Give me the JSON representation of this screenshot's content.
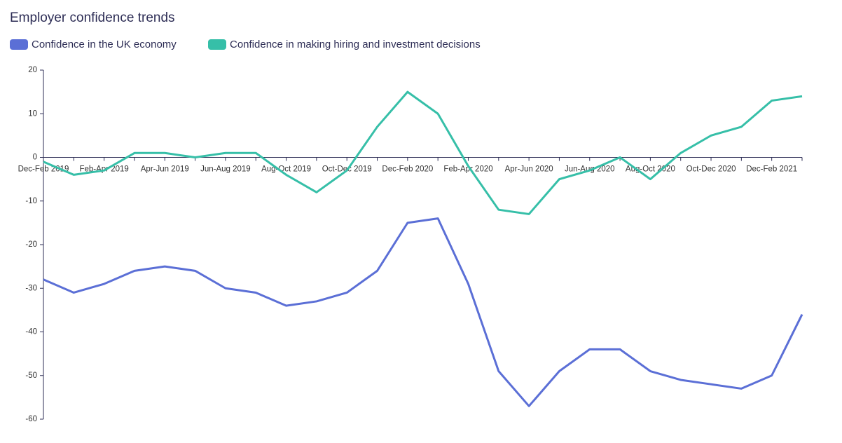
{
  "chart_data": {
    "type": "line",
    "title": "Employer confidence trends",
    "categories": [
      "Dec-Feb 2019",
      null,
      "Feb-Apr 2019",
      null,
      "Apr-Jun 2019",
      null,
      "Jun-Aug 2019",
      null,
      "Aug-Oct 2019",
      null,
      "Oct-Dec 2019",
      null,
      "Dec-Feb 2020",
      null,
      "Feb-Apr 2020",
      null,
      "Apr-Jun 2020",
      null,
      "Jun-Aug 2020",
      null,
      "Aug-Oct 2020",
      null,
      "Oct-Dec 2020",
      null,
      "Dec-Feb 2021",
      null
    ],
    "series": [
      {
        "name": "Confidence in the UK economy",
        "color": "#5b6fd6",
        "values": [
          -28,
          -31,
          -29,
          -26,
          -25,
          -26,
          -30,
          -31,
          -34,
          -33,
          -31,
          -26,
          -15,
          -14,
          -29,
          -49,
          -57,
          -49,
          -44,
          -44,
          -49,
          -51,
          -52,
          -53,
          -50,
          -36
        ]
      },
      {
        "name": "Confidence in making hiring and investment decisions",
        "color": "#36bfa8",
        "values": [
          -1,
          -4,
          -3,
          1,
          1,
          0,
          1,
          1,
          -4,
          -8,
          -3,
          7,
          15,
          10,
          -2,
          -12,
          -13,
          -5,
          -3,
          0,
          -5,
          1,
          5,
          7,
          13,
          14
        ]
      }
    ],
    "ylim": [
      -60,
      20
    ],
    "yticks": [
      20,
      10,
      0,
      -10,
      -20,
      -30,
      -40,
      -50,
      -60
    ]
  }
}
